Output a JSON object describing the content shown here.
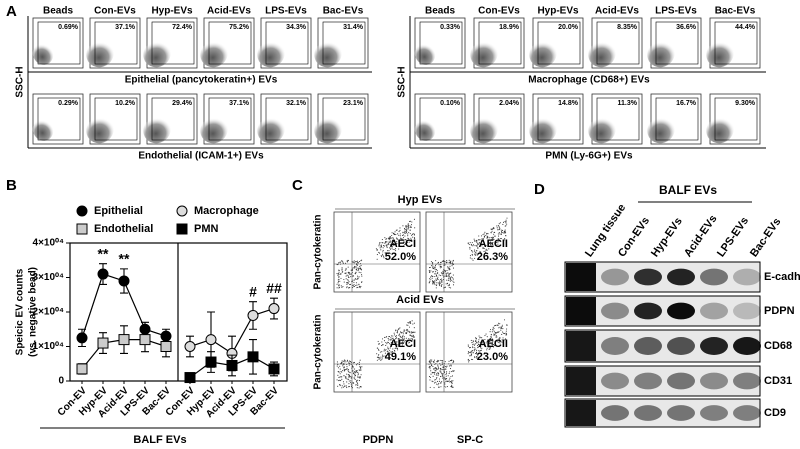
{
  "panel_a": {
    "label": "A",
    "blocks": [
      {
        "y_label": "SSC-H",
        "titles": [
          "Beads",
          "Con-EVs",
          "Hyp-EVs",
          "Acid-EVs",
          "LPS-EVs",
          "Bac-EVs"
        ],
        "rows": [
          {
            "caption": "Epithelial (pancytokeratin+) EVs",
            "values": [
              "0.69%",
              "37.1%",
              "72.4%",
              "75.2%",
              "34.3%",
              "31.4%"
            ]
          },
          {
            "caption": "Endothelial (ICAM-1+) EVs",
            "values": [
              "0.29%",
              "10.2%",
              "29.4%",
              "37.1%",
              "32.1%",
              "23.1%"
            ]
          }
        ]
      },
      {
        "y_label": "SSC-H",
        "titles": [
          "Beads",
          "Con-EVs",
          "Hyp-EVs",
          "Acid-EVs",
          "LPS-EVs",
          "Bac-EVs"
        ],
        "rows": [
          {
            "caption": "Macrophage (CD68+) EVs",
            "values": [
              "0.33%",
              "18.9%",
              "20.0%",
              "8.35%",
              "36.6%",
              "44.4%"
            ]
          },
          {
            "caption": "PMN (Ly-6G+) EVs",
            "values": [
              "0.10%",
              "2.04%",
              "14.8%",
              "11.3%",
              "16.7%",
              "9.30%"
            ]
          }
        ]
      }
    ]
  },
  "chart_data": {
    "type": "line",
    "label": "B",
    "y_label": [
      "Speicic EV counts",
      "(vs. negative bead)"
    ],
    "x_label": "BALF EVs",
    "categories": [
      "Con-EV",
      "Hyp-EV",
      "Acid-EV",
      "LPS-EV",
      "Bac-EV"
    ],
    "ylim": [
      0,
      40000
    ],
    "yticks": [
      0,
      {
        "value": 10000,
        "label": "1×10⁰⁴"
      },
      {
        "value": 20000,
        "label": "2×10⁰⁴"
      },
      {
        "value": 30000,
        "label": "3×10⁰⁴"
      },
      {
        "value": 40000,
        "label": "4×10⁰⁴"
      }
    ],
    "series": [
      {
        "name": "Epithelial",
        "subplot": 0,
        "marker": "circle",
        "color": "#000000",
        "values": [
          12500,
          31000,
          29000,
          15000,
          13000
        ],
        "errors": [
          2500,
          3000,
          3500,
          2000,
          2000
        ],
        "annotations": [
          null,
          "**",
          "**",
          null,
          null
        ]
      },
      {
        "name": "Endothelial",
        "subplot": 0,
        "marker": "square",
        "color": "#cccccc",
        "values": [
          3500,
          11000,
          12000,
          12000,
          10000
        ],
        "errors": [
          1500,
          3000,
          4000,
          3500,
          3000
        ],
        "annotations": [
          null,
          null,
          null,
          null,
          null
        ]
      },
      {
        "name": "Macrophage",
        "subplot": 1,
        "marker": "circle",
        "color": "#dddddd",
        "values": [
          10000,
          12000,
          8000,
          19000,
          21000
        ],
        "errors": [
          3000,
          8000,
          5000,
          4000,
          3000
        ],
        "annotations": [
          null,
          null,
          null,
          "#",
          "##"
        ]
      },
      {
        "name": "PMN",
        "subplot": 1,
        "marker": "square",
        "color": "#000000",
        "values": [
          1000,
          5500,
          4500,
          7000,
          3500
        ],
        "errors": [
          1000,
          3000,
          3000,
          5000,
          2000
        ],
        "annotations": [
          null,
          null,
          null,
          null,
          null
        ]
      }
    ]
  },
  "panel_c": {
    "label": "C",
    "y_label": "Pan-cytokeratin",
    "x_labels": [
      "PDPN",
      "SP-C"
    ],
    "rows": [
      {
        "title": "Hyp EVs",
        "plots": [
          {
            "population": "AECI",
            "percent": "52.0%"
          },
          {
            "population": "AECII",
            "percent": "26.3%"
          }
        ]
      },
      {
        "title": "Acid EVs",
        "plots": [
          {
            "population": "AECI",
            "percent": "49.1%"
          },
          {
            "population": "AECII",
            "percent": "23.0%"
          }
        ]
      }
    ]
  },
  "panel_d": {
    "label": "D",
    "group": "BALF EVs",
    "lanes": [
      "Lung tissue",
      "Con-EVs",
      "Hyp-EVs",
      "Acid-EVs",
      "LPS-EVs",
      "Bac-EVs"
    ],
    "proteins": [
      "E-cadherin",
      "PDPN",
      "CD68",
      "CD31",
      "CD9"
    ]
  }
}
